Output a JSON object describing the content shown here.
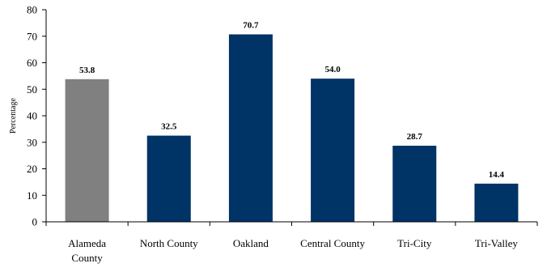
{
  "chart_data": {
    "type": "bar",
    "ylabel": "Percentage",
    "xlabel": "",
    "ylim": [
      0,
      80
    ],
    "yticks": [
      0,
      10,
      20,
      30,
      40,
      50,
      60,
      70,
      80
    ],
    "grid": false,
    "categories": [
      [
        "Alameda",
        "County"
      ],
      [
        "North County"
      ],
      [
        "Oakland"
      ],
      [
        "Central County"
      ],
      [
        "Tri-City"
      ],
      [
        "Tri-Valley"
      ]
    ],
    "values": [
      53.8,
      32.5,
      70.7,
      54.0,
      28.7,
      14.4
    ],
    "data_labels": [
      "53.8",
      "32.5",
      "70.7",
      "54.0",
      "28.7",
      "14.4"
    ],
    "bar_colors": [
      "#808080",
      "#003366",
      "#003366",
      "#003366",
      "#003366",
      "#003366"
    ]
  }
}
